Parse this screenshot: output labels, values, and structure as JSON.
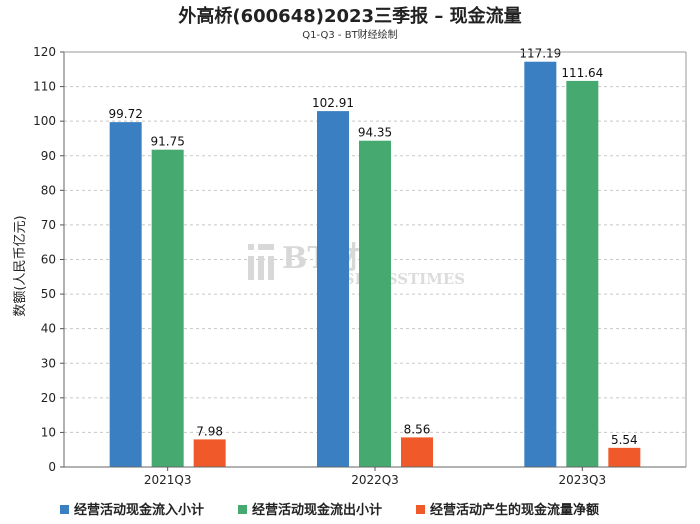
{
  "chart_data": {
    "type": "bar",
    "title": "外高桥(600648)2023三季报 – 现金流量",
    "subtitle": "Q1-Q3 - BT财经绘制",
    "xlabel": "",
    "ylabel": "数额(人民币亿元)",
    "ylim": [
      0,
      120
    ],
    "yticks": [
      0,
      10,
      20,
      30,
      40,
      50,
      60,
      70,
      80,
      90,
      100,
      110,
      120
    ],
    "grid": true,
    "legend_position": "bottom",
    "categories": [
      "2021Q3",
      "2022Q3",
      "2023Q3"
    ],
    "series": [
      {
        "name": "经营活动现金流入小计",
        "color": "#3a7fc1",
        "values": [
          99.72,
          102.91,
          117.19
        ],
        "labels": [
          "99.72",
          "102.91",
          "117.19"
        ]
      },
      {
        "name": "经营活动现金流出小计",
        "color": "#46a96f",
        "values": [
          91.75,
          94.35,
          111.64
        ],
        "labels": [
          "91.75",
          "94.35",
          "111.64"
        ]
      },
      {
        "name": "经营活动产生的现金流量净额",
        "color": "#f0592a",
        "values": [
          7.98,
          8.56,
          5.54
        ],
        "labels": [
          "7.98",
          "8.56",
          "5.54"
        ]
      }
    ]
  },
  "watermark": {
    "logo_text": "BT财经",
    "sub_text": "BUSINESSTIMES"
  }
}
